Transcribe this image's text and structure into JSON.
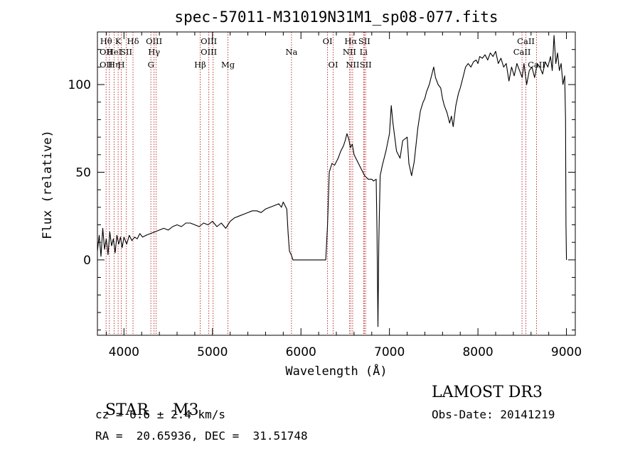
{
  "chart_data": {
    "type": "line",
    "title": "spec-57011-M31019N31M1_sp08-077.fits",
    "xlabel": "Wavelength (Å)",
    "ylabel": "Flux (relative)",
    "xlim": [
      3700,
      9100
    ],
    "ylim": [
      -43,
      130
    ],
    "xticks": [
      4000,
      5000,
      6000,
      7000,
      8000,
      9000
    ],
    "yticks": [
      0,
      50,
      100
    ],
    "grid": false,
    "series": [
      {
        "color": "#000000",
        "points": [
          [
            3700,
            5
          ],
          [
            3720,
            14
          ],
          [
            3740,
            2
          ],
          [
            3760,
            18
          ],
          [
            3780,
            6
          ],
          [
            3800,
            12
          ],
          [
            3820,
            3
          ],
          [
            3840,
            16
          ],
          [
            3860,
            8
          ],
          [
            3880,
            12
          ],
          [
            3900,
            4
          ],
          [
            3920,
            14
          ],
          [
            3940,
            9
          ],
          [
            3960,
            13
          ],
          [
            3980,
            7
          ],
          [
            4000,
            13
          ],
          [
            4030,
            9
          ],
          [
            4060,
            14
          ],
          [
            4090,
            11
          ],
          [
            4120,
            13
          ],
          [
            4150,
            12
          ],
          [
            4180,
            15
          ],
          [
            4210,
            13
          ],
          [
            4250,
            14
          ],
          [
            4300,
            15
          ],
          [
            4350,
            16
          ],
          [
            4400,
            17
          ],
          [
            4450,
            18
          ],
          [
            4500,
            17
          ],
          [
            4550,
            19
          ],
          [
            4600,
            20
          ],
          [
            4650,
            19
          ],
          [
            4700,
            21
          ],
          [
            4750,
            21
          ],
          [
            4800,
            20
          ],
          [
            4850,
            19
          ],
          [
            4900,
            21
          ],
          [
            4950,
            20
          ],
          [
            5000,
            22
          ],
          [
            5050,
            19
          ],
          [
            5100,
            21
          ],
          [
            5150,
            18
          ],
          [
            5200,
            22
          ],
          [
            5250,
            24
          ],
          [
            5300,
            25
          ],
          [
            5350,
            26
          ],
          [
            5400,
            27
          ],
          [
            5450,
            28
          ],
          [
            5500,
            28
          ],
          [
            5550,
            27
          ],
          [
            5600,
            29
          ],
          [
            5650,
            30
          ],
          [
            5700,
            31
          ],
          [
            5750,
            32
          ],
          [
            5780,
            30
          ],
          [
            5800,
            33
          ],
          [
            5820,
            31
          ],
          [
            5840,
            29
          ],
          [
            5855,
            15
          ],
          [
            5870,
            5
          ],
          [
            5890,
            3
          ],
          [
            5910,
            0
          ],
          [
            6000,
            0
          ],
          [
            6100,
            0
          ],
          [
            6200,
            0
          ],
          [
            6280,
            0
          ],
          [
            6300,
            20
          ],
          [
            6320,
            50
          ],
          [
            6350,
            55
          ],
          [
            6380,
            54
          ],
          [
            6420,
            58
          ],
          [
            6450,
            62
          ],
          [
            6480,
            65
          ],
          [
            6500,
            68
          ],
          [
            6520,
            72
          ],
          [
            6540,
            69
          ],
          [
            6560,
            64
          ],
          [
            6580,
            66
          ],
          [
            6600,
            60
          ],
          [
            6620,
            58
          ],
          [
            6650,
            55
          ],
          [
            6680,
            52
          ],
          [
            6700,
            50
          ],
          [
            6720,
            48
          ],
          [
            6740,
            47
          ],
          [
            6760,
            46
          ],
          [
            6780,
            46
          ],
          [
            6800,
            46
          ],
          [
            6820,
            45
          ],
          [
            6850,
            46
          ],
          [
            6860,
            15
          ],
          [
            6870,
            -38
          ],
          [
            6880,
            10
          ],
          [
            6895,
            48
          ],
          [
            6920,
            54
          ],
          [
            6960,
            62
          ],
          [
            7000,
            72
          ],
          [
            7020,
            88
          ],
          [
            7040,
            78
          ],
          [
            7080,
            62
          ],
          [
            7120,
            58
          ],
          [
            7150,
            68
          ],
          [
            7200,
            70
          ],
          [
            7220,
            55
          ],
          [
            7250,
            48
          ],
          [
            7280,
            56
          ],
          [
            7320,
            75
          ],
          [
            7350,
            85
          ],
          [
            7380,
            90
          ],
          [
            7400,
            92
          ],
          [
            7420,
            96
          ],
          [
            7450,
            100
          ],
          [
            7480,
            106
          ],
          [
            7500,
            110
          ],
          [
            7520,
            104
          ],
          [
            7550,
            100
          ],
          [
            7580,
            98
          ],
          [
            7600,
            92
          ],
          [
            7620,
            88
          ],
          [
            7650,
            84
          ],
          [
            7680,
            78
          ],
          [
            7700,
            82
          ],
          [
            7720,
            76
          ],
          [
            7750,
            88
          ],
          [
            7780,
            95
          ],
          [
            7800,
            98
          ],
          [
            7830,
            104
          ],
          [
            7860,
            110
          ],
          [
            7890,
            112
          ],
          [
            7920,
            110
          ],
          [
            7950,
            113
          ],
          [
            7980,
            114
          ],
          [
            8000,
            112
          ],
          [
            8020,
            116
          ],
          [
            8050,
            115
          ],
          [
            8080,
            117
          ],
          [
            8110,
            114
          ],
          [
            8140,
            118
          ],
          [
            8170,
            116
          ],
          [
            8200,
            119
          ],
          [
            8230,
            112
          ],
          [
            8260,
            115
          ],
          [
            8290,
            110
          ],
          [
            8320,
            112
          ],
          [
            8350,
            102
          ],
          [
            8380,
            110
          ],
          [
            8410,
            105
          ],
          [
            8440,
            112
          ],
          [
            8470,
            108
          ],
          [
            8500,
            104
          ],
          [
            8520,
            112
          ],
          [
            8550,
            100
          ],
          [
            8580,
            108
          ],
          [
            8610,
            110
          ],
          [
            8640,
            104
          ],
          [
            8670,
            112
          ],
          [
            8700,
            110
          ],
          [
            8730,
            106
          ],
          [
            8760,
            113
          ],
          [
            8790,
            110
          ],
          [
            8820,
            116
          ],
          [
            8840,
            108
          ],
          [
            8860,
            128
          ],
          [
            8880,
            112
          ],
          [
            8900,
            118
          ],
          [
            8920,
            108
          ],
          [
            8940,
            112
          ],
          [
            8960,
            100
          ],
          [
            8980,
            105
          ],
          [
            8990,
            80
          ],
          [
            8995,
            20
          ],
          [
            9000,
            0
          ]
        ]
      }
    ],
    "annotations": {
      "lines": [
        {
          "x": 3798,
          "labels": [
            {
              "text": "Hθ",
              "row": 1
            },
            {
              "text": "OII",
              "row": 2
            },
            {
              "text": "OII",
              "row": 3
            }
          ]
        },
        {
          "x": 3835,
          "labels": []
        },
        {
          "x": 3889,
          "labels": [
            {
              "text": "HeI",
              "row": 2
            },
            {
              "text": "Hη",
              "row": 3
            }
          ]
        },
        {
          "x": 3934,
          "labels": [
            {
              "text": "K",
              "row": 1
            }
          ]
        },
        {
          "x": 3969,
          "labels": [
            {
              "text": "H",
              "row": 3
            }
          ]
        },
        {
          "x": 4026,
          "labels": [
            {
              "text": "SII",
              "row": 2
            }
          ]
        },
        {
          "x": 4102,
          "labels": [
            {
              "text": "Hδ",
              "row": 1
            }
          ]
        },
        {
          "x": 4304,
          "labels": [
            {
              "text": "G",
              "row": 3
            }
          ]
        },
        {
          "x": 4340,
          "labels": [
            {
              "text": "OIII",
              "row": 1
            },
            {
              "text": "Hγ",
              "row": 2
            }
          ]
        },
        {
          "x": 4363,
          "labels": []
        },
        {
          "x": 4861,
          "labels": [
            {
              "text": "Hβ",
              "row": 3
            }
          ]
        },
        {
          "x": 4959,
          "labels": [
            {
              "text": "OIII",
              "row": 1
            },
            {
              "text": "OIII",
              "row": 2
            }
          ]
        },
        {
          "x": 5007,
          "labels": []
        },
        {
          "x": 5175,
          "labels": [
            {
              "text": "Mg",
              "row": 3
            }
          ]
        },
        {
          "x": 5893,
          "labels": [
            {
              "text": "Na",
              "row": 2
            }
          ]
        },
        {
          "x": 6300,
          "labels": [
            {
              "text": "OI",
              "row": 1
            }
          ]
        },
        {
          "x": 6364,
          "labels": [
            {
              "text": "OI",
              "row": 3
            }
          ]
        },
        {
          "x": 6548,
          "labels": [
            {
              "text": "NII",
              "row": 2
            }
          ]
        },
        {
          "x": 6563,
          "labels": [
            {
              "text": "Hα",
              "row": 1
            }
          ]
        },
        {
          "x": 6584,
          "labels": [
            {
              "text": "NII",
              "row": 3
            }
          ]
        },
        {
          "x": 6708,
          "labels": [
            {
              "text": "Li",
              "row": 2
            }
          ]
        },
        {
          "x": 6716,
          "labels": [
            {
              "text": "SII",
              "row": 1
            }
          ]
        },
        {
          "x": 6731,
          "labels": [
            {
              "text": "SII",
              "row": 3
            }
          ]
        },
        {
          "x": 8498,
          "labels": [
            {
              "text": "CaII",
              "row": 2
            }
          ]
        },
        {
          "x": 8542,
          "labels": [
            {
              "text": "CaII",
              "row": 1
            }
          ]
        },
        {
          "x": 8662,
          "labels": [
            {
              "text": "CaII",
              "row": 3
            }
          ]
        }
      ]
    }
  },
  "info": {
    "class": "STAR",
    "subclass": "M3",
    "cz": "cz = 6.6 ± 2.4 km/s",
    "coords": "RA =  20.65936, DEC =  31.51748",
    "survey": "LAMOST DR3",
    "obs_date": "Obs-Date: 20141219"
  }
}
